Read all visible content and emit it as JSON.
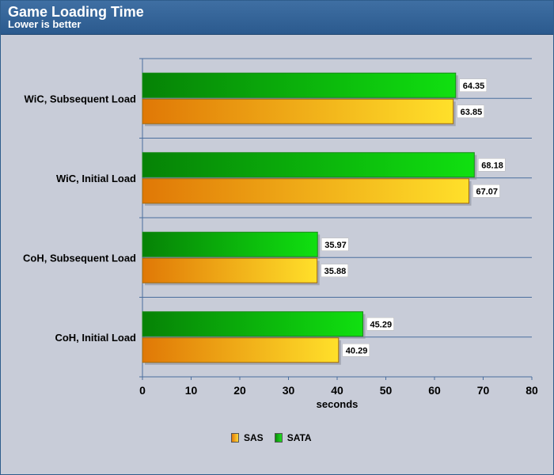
{
  "chart_data": {
    "type": "bar",
    "orientation": "horizontal",
    "title": "Game Loading Time",
    "subtitle": "Lower is better",
    "xlabel": "seconds",
    "ylabel": "",
    "xlim": [
      0,
      80
    ],
    "xticks": [
      0,
      10,
      20,
      30,
      40,
      50,
      60,
      70,
      80
    ],
    "categories": [
      "WiC, Subsequent Load",
      "WiC, Initial Load",
      "CoH, Subsequent Load",
      "CoH, Initial Load"
    ],
    "series": [
      {
        "name": "SAS",
        "values": [
          63.85,
          67.07,
          35.88,
          40.29
        ],
        "color": "#f0a010"
      },
      {
        "name": "SATA",
        "values": [
          64.35,
          68.18,
          35.97,
          45.29
        ],
        "color": "#10c010"
      }
    ],
    "grid": "horizontal",
    "legend": "bottom"
  }
}
